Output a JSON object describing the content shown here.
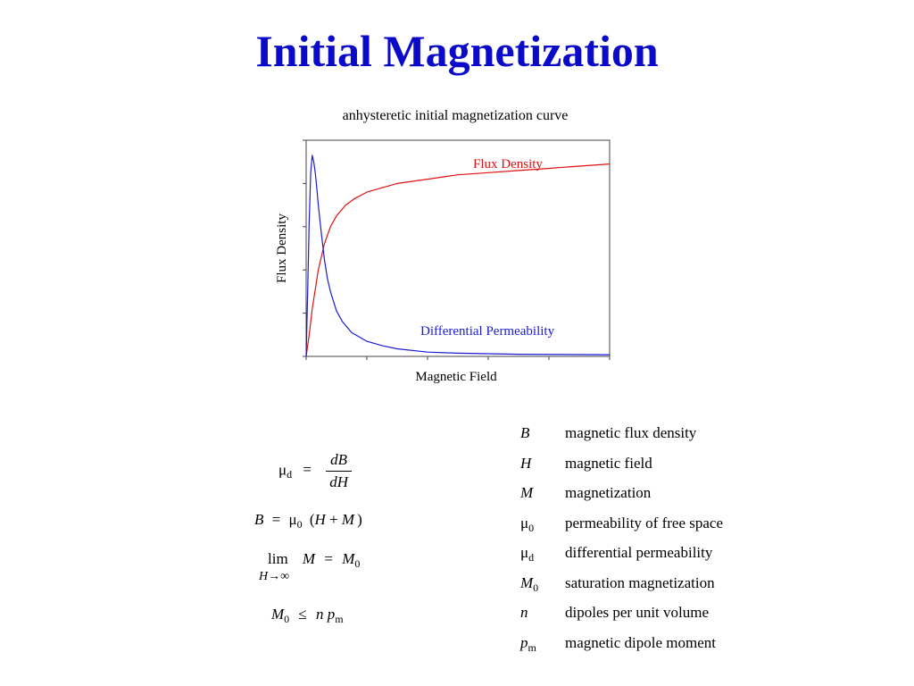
{
  "title": "Initial Magnetization",
  "chart_data": {
    "type": "line",
    "title": "anhysteretic initial magnetization curve",
    "xlabel": "Magnetic Field",
    "ylabel": "Flux Density",
    "xlim": [
      0,
      1
    ],
    "ylim": [
      0,
      1
    ],
    "grid": false,
    "series": [
      {
        "name": "Flux Density",
        "color": "#dd1111",
        "x": [
          0,
          0.01,
          0.02,
          0.04,
          0.06,
          0.08,
          0.1,
          0.13,
          0.16,
          0.2,
          0.25,
          0.3,
          0.4,
          0.5,
          0.6,
          0.7,
          0.8,
          0.9,
          1.0
        ],
        "values": [
          0,
          0.1,
          0.22,
          0.4,
          0.52,
          0.6,
          0.65,
          0.7,
          0.73,
          0.76,
          0.78,
          0.8,
          0.82,
          0.84,
          0.85,
          0.86,
          0.87,
          0.88,
          0.89
        ]
      },
      {
        "name": "Differential Permeability",
        "color": "#1a1ad8",
        "x": [
          0,
          0.005,
          0.01,
          0.015,
          0.02,
          0.025,
          0.03,
          0.035,
          0.04,
          0.05,
          0.06,
          0.07,
          0.08,
          0.1,
          0.12,
          0.15,
          0.2,
          0.25,
          0.3,
          0.4,
          0.5,
          0.7,
          1.0
        ],
        "values": [
          0,
          0.3,
          0.62,
          0.85,
          0.93,
          0.9,
          0.85,
          0.78,
          0.7,
          0.57,
          0.45,
          0.36,
          0.3,
          0.21,
          0.16,
          0.11,
          0.07,
          0.05,
          0.035,
          0.02,
          0.015,
          0.01,
          0.008
        ]
      }
    ]
  },
  "equations": [
    {
      "lhs": "μ",
      "lhs_sub": "d",
      "op": "=",
      "num": "dB",
      "den": "dH"
    },
    {
      "text_B": "B",
      "eq": "=",
      "mu": "μ",
      "mu_sub": "0",
      "open": "(",
      "H": "H",
      "plus": "+",
      "M": "M",
      "close": ")"
    },
    {
      "lim": "lim",
      "M": "M",
      "eq": "=",
      "M0": "M",
      "M0_sub": "0",
      "under_H": "H",
      "under_arrow": "→∞"
    },
    {
      "M0": "M",
      "M0_sub": "0",
      "le": "≤",
      "n": "n",
      "p": "p",
      "p_sub": "m"
    }
  ],
  "legend": [
    {
      "symbol": "B",
      "sub": "",
      "desc": "magnetic flux density"
    },
    {
      "symbol": "H",
      "sub": "",
      "desc": "magnetic field"
    },
    {
      "symbol": "M",
      "sub": "",
      "desc": "magnetization"
    },
    {
      "symbol": "μ",
      "sub": "0",
      "desc": "permeability of free space"
    },
    {
      "symbol": "μ",
      "sub": "d",
      "desc": "differential permeability"
    },
    {
      "symbol": "M",
      "sub": "0",
      "desc": "saturation magnetization"
    },
    {
      "symbol": "n",
      "sub": "",
      "desc": "dipoles per unit volume"
    },
    {
      "symbol": "p",
      "sub": "m",
      "desc": "magnetic dipole moment"
    }
  ]
}
